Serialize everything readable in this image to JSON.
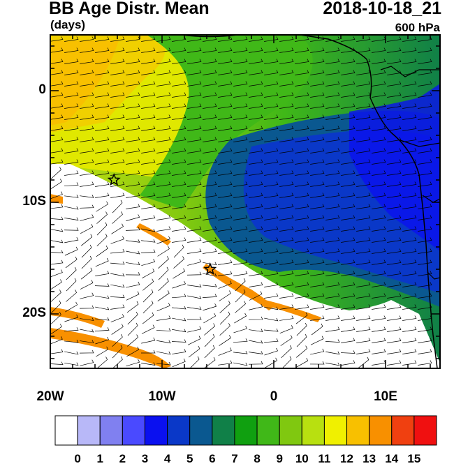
{
  "title": "BB Age Distr. Mean",
  "units": "(days)",
  "date": "2018-10-18_21",
  "level": "600 hPa",
  "x_ticks": [
    "20W",
    "10W",
    "0",
    "10E"
  ],
  "y_ticks": [
    "0",
    "10S",
    "20S"
  ],
  "colorbar": {
    "labels": [
      "0",
      "1",
      "2",
      "3",
      "4",
      "5",
      "6",
      "7",
      "8",
      "9",
      "10",
      "11",
      "12",
      "13",
      "14",
      "15"
    ],
    "colors": [
      "#ffffff",
      "#b8b8f8",
      "#8080f0",
      "#4a4aff",
      "#0a10f0",
      "#0a38c8",
      "#0a5890",
      "#108048",
      "#10a010",
      "#40b818",
      "#80c810",
      "#b8e010",
      "#f0f000",
      "#f8c000",
      "#f89000",
      "#f04010",
      "#f01010"
    ]
  },
  "markers": [
    {
      "name": "star",
      "lon": -14.3,
      "lat": -8.0
    },
    {
      "name": "star",
      "lon": -5.7,
      "lat": -16.0
    }
  ]
}
